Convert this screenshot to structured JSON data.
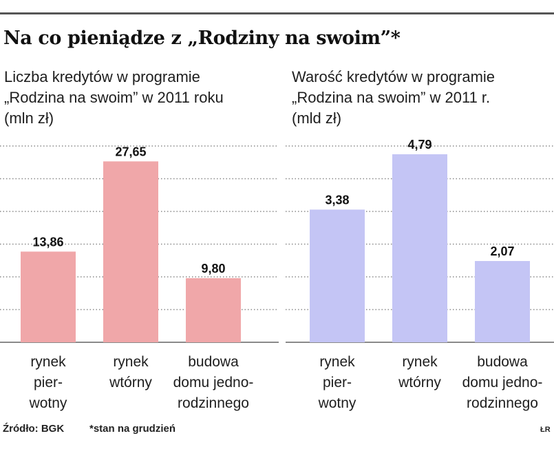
{
  "title": "Na co pieniądze z „Rodziny na swoim”*",
  "charts": {
    "left": {
      "subtitle": [
        "Liczba kredytów w programie",
        "„Rodzina na swoim” w  2011 roku",
        "(mln zł)"
      ],
      "color": "#f0a7a9"
    },
    "right": {
      "subtitle": [
        "Warość kredytów w programie",
        "„Rodzina na swoim” w 2011 r.",
        "(mld zł)"
      ],
      "color": "#c4c5f5"
    }
  },
  "chart_data": [
    {
      "type": "bar",
      "title": "Liczba kredytów w programie „Rodzina na swoim” w 2011 roku (mln zł)",
      "categories": [
        [
          "rynek",
          "pier-",
          "wotny"
        ],
        [
          "rynek",
          "wtórny"
        ],
        [
          "budowa",
          "domu jedno-",
          "rodzinnego"
        ]
      ],
      "values": [
        13.86,
        27.65,
        9.8
      ],
      "labels": [
        "13,86",
        "27,65",
        "9,80"
      ],
      "ylim": [
        0,
        30
      ],
      "grid": true
    },
    {
      "type": "bar",
      "title": "Warość kredytów w programie „Rodzina na swoim” w 2011 r. (mld zł)",
      "categories": [
        [
          "rynek",
          "pier-",
          "wotny"
        ],
        [
          "rynek",
          "wtórny"
        ],
        [
          "budowa",
          "domu jedno-",
          "rodzinnego"
        ]
      ],
      "values": [
        3.38,
        4.79,
        2.07
      ],
      "labels": [
        "3,38",
        "4,79",
        "2,07"
      ],
      "ylim": [
        0,
        5
      ],
      "grid": true
    }
  ],
  "footer": {
    "source": "Źródło: BGK",
    "note": "*stan na grudzień",
    "credit": "ŁR"
  }
}
